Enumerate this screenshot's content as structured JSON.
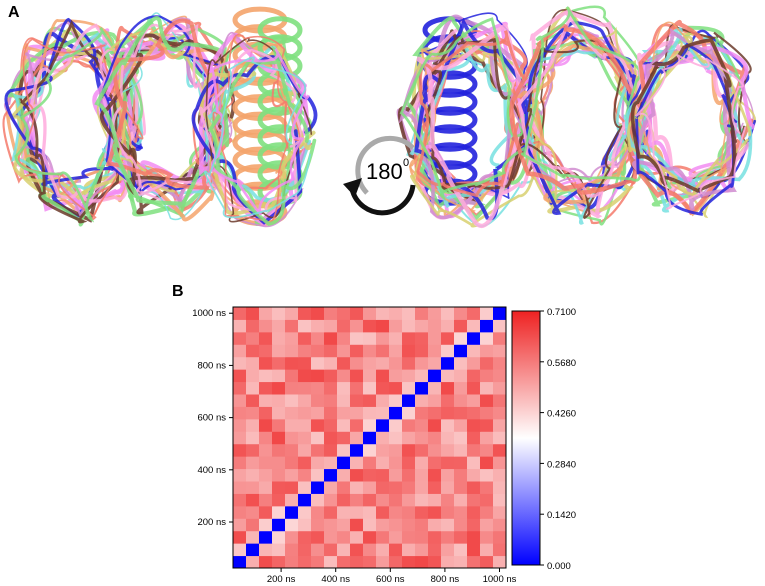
{
  "panels": {
    "a": {
      "label": "A"
    },
    "b": {
      "label": "B"
    }
  },
  "rotation": {
    "degrees": "180",
    "unit": "0"
  },
  "structure_colors": [
    "#f47a6b",
    "#7fe07f",
    "#f28cf2",
    "#77e0e0",
    "#f4a46c",
    "#d08cd0",
    "#d8d070",
    "#2222dd",
    "#6b3a2a",
    "#ffaadd"
  ],
  "chart_data": {
    "type": "heatmap",
    "n": 21,
    "x_ticks": [
      "200 ns",
      "400 ns",
      "600 ns",
      "800 ns",
      "1000 ns"
    ],
    "y_ticks": [
      "200 ns",
      "400 ns",
      "600 ns",
      "800 ns",
      "1000 ns"
    ],
    "tick_values": [
      200,
      400,
      600,
      800,
      1000
    ],
    "range": [
      0,
      1000
    ],
    "colorbar": {
      "ticks": [
        "0.000",
        "0.1420",
        "0.2840",
        "0.4260",
        "0.5680",
        "0.7100"
      ],
      "min": 0.0,
      "max": 0.71,
      "low_color": "#0000ff",
      "mid_color": "#ffffff",
      "high_color": "#ee2222"
    },
    "diagonal_value": 0.0,
    "typical_offdiag_range": [
      0.45,
      0.65
    ]
  }
}
